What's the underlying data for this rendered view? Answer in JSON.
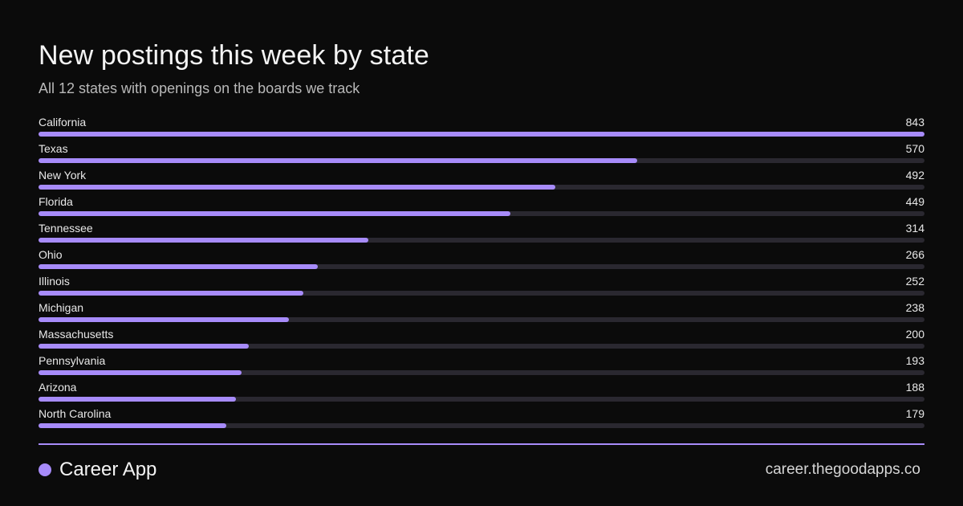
{
  "header": {
    "title": "New postings this week by state",
    "subtitle": "All 12 states with openings on the boards we track"
  },
  "chart_data": {
    "type": "bar",
    "orientation": "horizontal",
    "title": "New postings this week by state",
    "subtitle": "All 12 states with openings on the boards we track",
    "categories": [
      "California",
      "Texas",
      "New York",
      "Florida",
      "Tennessee",
      "Ohio",
      "Illinois",
      "Michigan",
      "Massachusetts",
      "Pennsylvania",
      "Arizona",
      "North Carolina"
    ],
    "values": [
      843,
      570,
      492,
      449,
      314,
      266,
      252,
      238,
      200,
      193,
      188,
      179
    ],
    "xlim": [
      0,
      843
    ],
    "grid": false,
    "bar_color": "#a78bfa",
    "track_color": "#2a2830"
  },
  "footer": {
    "brand": "Career App",
    "url": "career.thegoodapps.co"
  },
  "colors": {
    "background": "#0b0b0b",
    "accent": "#a78bfa"
  }
}
